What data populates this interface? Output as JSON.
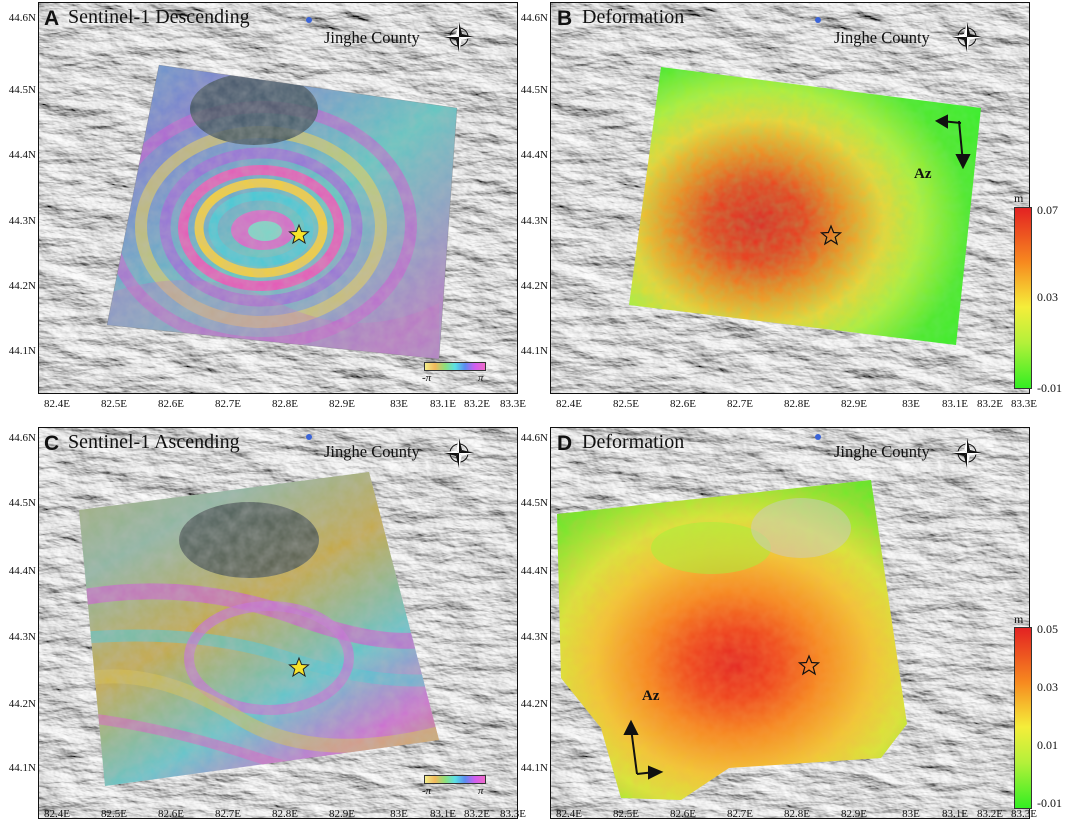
{
  "county_label": "Jinghe County",
  "x_ticks": [
    "82.4E",
    "82.5E",
    "82.6E",
    "82.7E",
    "82.8E",
    "82.9E",
    "83E",
    "83.1E",
    "83.2E",
    "83.3E"
  ],
  "y_ticks": [
    "44.6N",
    "44.5N",
    "44.4N",
    "44.3N",
    "44.2N",
    "44.1N"
  ],
  "panels": {
    "a": {
      "letter": "A",
      "title": "Sentinel-1 Descending",
      "phase_min": "-π",
      "phase_max": "π"
    },
    "b": {
      "letter": "B",
      "title": "Deformation",
      "unit": "m",
      "cbar_labels": [
        "0.07",
        "0.03",
        "-0.01"
      ],
      "az": "Az"
    },
    "c": {
      "letter": "C",
      "title": "Sentinel-1 Ascending",
      "phase_min": "-π",
      "phase_max": "π"
    },
    "d": {
      "letter": "D",
      "title": "Deformation",
      "unit": "m",
      "cbar_labels": [
        "0.05",
        "0.03",
        "0.01",
        "-0.01"
      ],
      "az": "Az"
    }
  },
  "colors": {
    "deformation_max": "#e32222",
    "deformation_mid": "#f5ee3a",
    "deformation_min": "#33ee22",
    "epicenter_star": "#f6e32a",
    "county_dot": "#3a64d8"
  }
}
